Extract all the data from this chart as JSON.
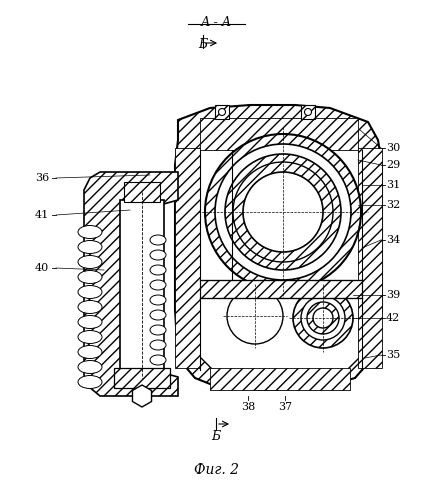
{
  "bg_color": "#ffffff",
  "line_color": "#000000",
  "title": "А - А",
  "fig_label": "Фиг. 2",
  "section_top": "Б",
  "section_bot": "Б",
  "labels_right": [
    [
      "30",
      383,
      148
    ],
    [
      "29",
      383,
      165
    ],
    [
      "31",
      383,
      185
    ],
    [
      "32",
      383,
      205
    ],
    [
      "34",
      383,
      240
    ],
    [
      "39",
      383,
      295
    ],
    [
      "42",
      383,
      318
    ],
    [
      "35",
      383,
      355
    ]
  ],
  "labels_left": [
    [
      "36",
      52,
      178
    ],
    [
      "41",
      52,
      215
    ],
    [
      "40",
      52,
      268
    ]
  ],
  "labels_bottom": [
    [
      "38",
      248,
      398
    ],
    [
      "37",
      285,
      398
    ]
  ]
}
